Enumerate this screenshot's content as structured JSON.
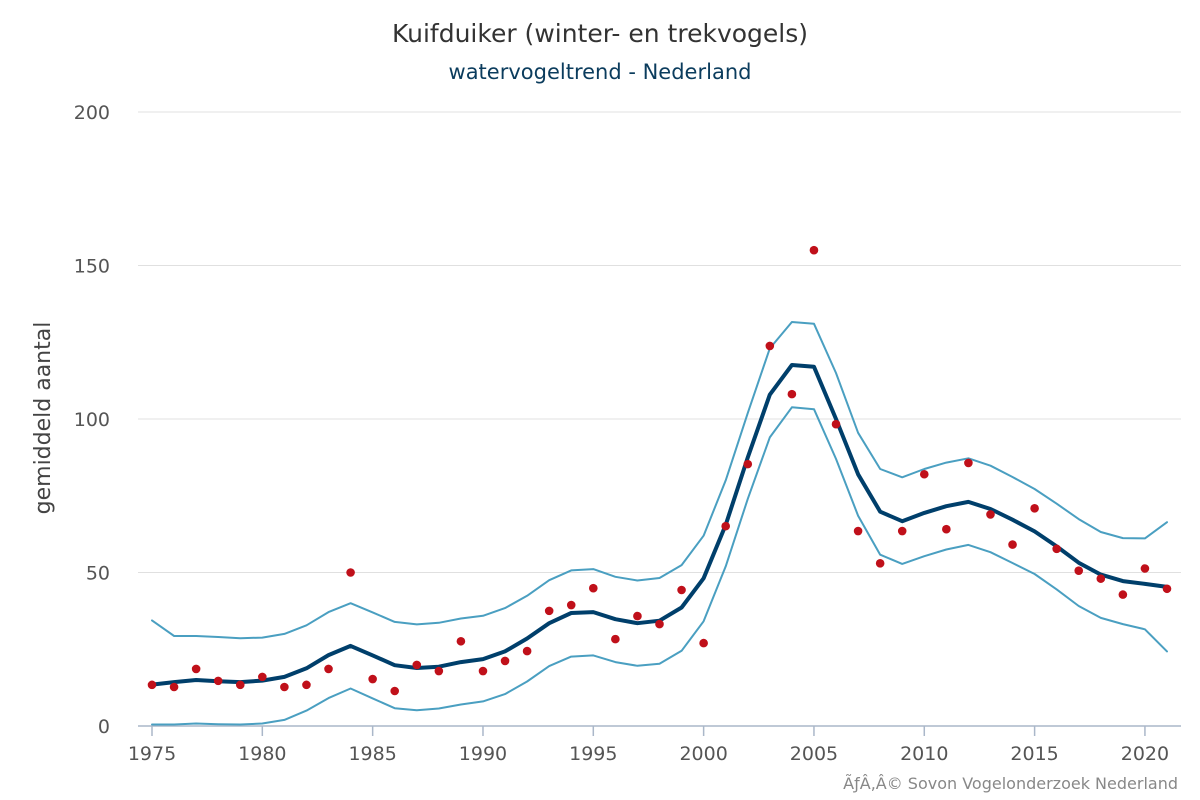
{
  "chart_data": {
    "type": "line",
    "title": "Kuifduiker (winter- en trekvogels)",
    "subtitle": "watervogeltrend - Nederland",
    "ylabel": "gemiddeld aantal",
    "xlabel": "",
    "xlim": [
      1975,
      2021
    ],
    "ylim": [
      0,
      200
    ],
    "x_ticks": [
      1975,
      1980,
      1985,
      1990,
      1995,
      2000,
      2005,
      2010,
      2015,
      2020
    ],
    "y_ticks": [
      0,
      50,
      100,
      150,
      200
    ],
    "grid": true,
    "x": [
      1975,
      1976,
      1977,
      1978,
      1979,
      1980,
      1981,
      1982,
      1983,
      1984,
      1985,
      1986,
      1987,
      1988,
      1989,
      1990,
      1991,
      1992,
      1993,
      1994,
      1995,
      1996,
      1997,
      1998,
      1999,
      2000,
      2001,
      2002,
      2003,
      2004,
      2005,
      2006,
      2007,
      2008,
      2009,
      2010,
      2011,
      2012,
      2013,
      2014,
      2015,
      2016,
      2017,
      2018,
      2019,
      2020,
      2021
    ],
    "series": [
      {
        "name": "trend",
        "color": "#003f6b",
        "values": [
          13.5,
          14.3,
          15.0,
          14.6,
          14.3,
          14.8,
          16.0,
          18.8,
          23.1,
          26.1,
          23.0,
          19.8,
          18.9,
          19.3,
          20.8,
          21.8,
          24.3,
          28.5,
          33.5,
          36.8,
          37.1,
          34.8,
          33.5,
          34.3,
          38.6,
          48.1,
          65.5,
          87.5,
          107.9,
          117.6,
          117.0,
          100.0,
          82.0,
          69.8,
          66.7,
          69.4,
          71.6,
          73.0,
          70.7,
          67.2,
          63.4,
          58.5,
          53.2,
          49.3,
          47.2,
          46.3,
          45.3
        ]
      },
      {
        "name": "upper",
        "color": "#4a9fc1",
        "values": [
          34.4,
          29.3,
          29.3,
          29.0,
          28.6,
          28.8,
          30.0,
          32.8,
          37.1,
          40.0,
          37.0,
          33.9,
          33.1,
          33.6,
          35.0,
          35.9,
          38.4,
          42.4,
          47.5,
          50.7,
          51.1,
          48.6,
          47.4,
          48.2,
          52.4,
          62.0,
          80.0,
          102.0,
          123.0,
          131.6,
          131.0,
          115.0,
          95.5,
          83.7,
          81.0,
          83.7,
          85.8,
          87.2,
          84.8,
          81.1,
          77.2,
          72.4,
          67.4,
          63.2,
          61.2,
          61.1,
          66.4
        ]
      },
      {
        "name": "lower",
        "color": "#4a9fc1",
        "values": [
          0.5,
          0.5,
          0.8,
          0.6,
          0.5,
          0.8,
          2.0,
          5.0,
          9.1,
          12.2,
          9.0,
          5.8,
          5.1,
          5.7,
          7.0,
          8.0,
          10.4,
          14.5,
          19.5,
          22.6,
          23.0,
          20.8,
          19.6,
          20.3,
          24.5,
          34.1,
          52.0,
          74.0,
          94.0,
          103.8,
          103.2,
          87.0,
          68.5,
          55.8,
          52.8,
          55.3,
          57.5,
          59.0,
          56.6,
          53.1,
          49.5,
          44.5,
          39.1,
          35.2,
          33.2,
          31.5,
          24.3
        ]
      },
      {
        "name": "counts",
        "color": "#c0101a",
        "marker": "dot",
        "values": [
          13.4,
          12.7,
          18.6,
          14.7,
          13.4,
          16.0,
          12.7,
          13.4,
          18.6,
          50.0,
          15.3,
          11.4,
          19.9,
          17.9,
          27.6,
          17.9,
          21.2,
          24.4,
          37.5,
          39.4,
          44.9,
          28.3,
          35.8,
          33.2,
          44.3,
          27.0,
          65.1,
          85.3,
          123.8,
          108.1,
          155.0,
          98.3,
          63.5,
          53.0,
          63.5,
          82.0,
          64.1,
          85.7,
          68.9,
          59.1,
          70.9,
          57.7,
          50.6,
          48.0,
          42.8,
          51.3,
          44.7
        ]
      }
    ]
  },
  "footer": {
    "credit": "ÃƒÂ‚Â© Sovon Vogelonderzoek Nederland"
  }
}
